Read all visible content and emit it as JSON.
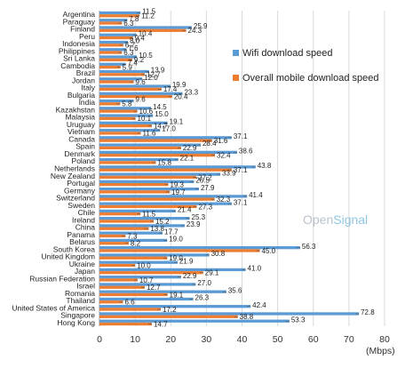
{
  "colors": {
    "wifi": "#5b9bd5",
    "mobile": "#ed7d31",
    "grid": "#d9d9d9",
    "axis": "#999999"
  },
  "brand": {
    "part1": "Open",
    "part2": "Signal"
  },
  "chart_data": {
    "type": "bar",
    "orientation": "horizontal",
    "title": "",
    "xlabel": "(Mbps)",
    "ylabel": "",
    "xlim": [
      0,
      80
    ],
    "xticks": [
      0,
      10,
      20,
      30,
      40,
      50,
      60,
      70,
      80
    ],
    "grid": true,
    "legend_position": "right",
    "categories": [
      "Argentina",
      "Paraguay",
      "Finland",
      "Peru",
      "Indonesia",
      "Philippines",
      "Sri Lanka",
      "Cambodia",
      "Brazil",
      "Jordan",
      "Italy",
      "Bulgaria",
      "India",
      "Kazakhstan",
      "Malaysia",
      "Uruguay",
      "Vietnam",
      "Canada",
      "Spain",
      "Denmark",
      "Poland",
      "Netherlands",
      "New Zealand",
      "Portugal",
      "Germany",
      "Switzerland",
      "Sweden",
      "Chile",
      "Ireland",
      "China",
      "Panama",
      "Belarus",
      "South Korea",
      "United Kingdom",
      "Ukraine",
      "Japan",
      "Russian Federation",
      "Israel",
      "Romania",
      "Thailand",
      "United States of America",
      "Singapore",
      "Hong Kong"
    ],
    "series": [
      {
        "name": "Wifi download speed",
        "values": [
          11.5,
          7.8,
          25.9,
          10.4,
          8.0,
          7.6,
          10.5,
          7.4,
          13.9,
          12.0,
          19.9,
          23.3,
          9.6,
          14.5,
          15.0,
          19.1,
          17.0,
          37.1,
          28.4,
          38.6,
          22.1,
          43.8,
          33.9,
          26.5,
          27.9,
          41.4,
          37.1,
          21.4,
          25.3,
          23.9,
          17.7,
          19.0,
          56.3,
          30.8,
          21.9,
          41.0,
          22.9,
          27.0,
          35.6,
          26.3,
          42.4,
          72.8,
          53.3
        ]
      },
      {
        "name": "Overall mobile download speed",
        "values": [
          11.2,
          6.3,
          24.3,
          9.4,
          6.7,
          6.3,
          9.2,
          5.9,
          12.7,
          9.6,
          17.4,
          20.4,
          5.8,
          10.6,
          10.1,
          14.7,
          11.6,
          31.6,
          22.9,
          32.4,
          15.8,
          37.1,
          27.2,
          19.3,
          19.7,
          32.3,
          27.3,
          11.5,
          15.2,
          13.8,
          7.3,
          8.2,
          45.0,
          19.0,
          10.0,
          29.1,
          10.7,
          12.7,
          19.1,
          6.6,
          17.2,
          38.8,
          14.7
        ]
      }
    ]
  }
}
